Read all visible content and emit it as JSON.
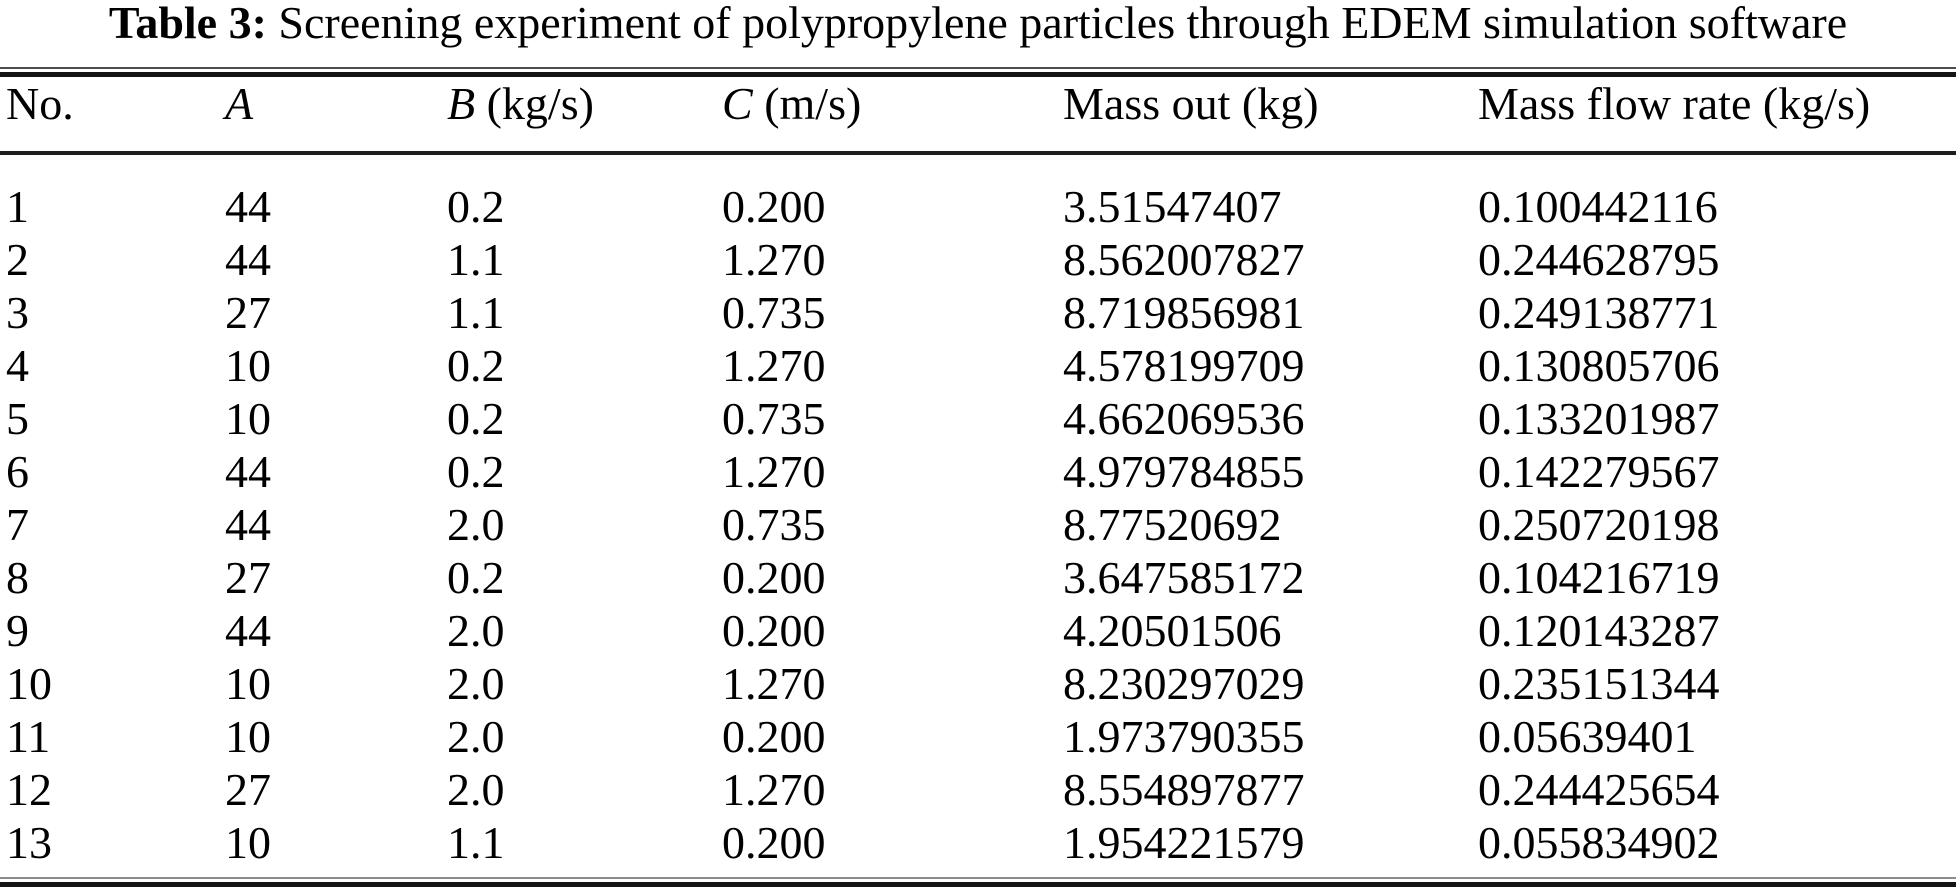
{
  "caption": {
    "label": "Table 3:",
    "text": " Screening experiment of polypropylene particles through EDEM simulation software"
  },
  "table": {
    "headers": [
      {
        "label": "No."
      },
      {
        "var": "A",
        "unit": ""
      },
      {
        "var": "B",
        "unit": " (kg/s)"
      },
      {
        "var": "C",
        "unit": " (m/s)"
      },
      {
        "label": "Mass out (kg)"
      },
      {
        "label": "Mass flow rate (kg/s)"
      }
    ],
    "rows": [
      [
        "1",
        "44",
        "0.2",
        "0.200",
        "3.51547407",
        "0.100442116"
      ],
      [
        "2",
        "44",
        "1.1",
        "1.270",
        "8.562007827",
        "0.244628795"
      ],
      [
        "3",
        "27",
        "1.1",
        "0.735",
        "8.719856981",
        "0.249138771"
      ],
      [
        "4",
        "10",
        "0.2",
        "1.270",
        "4.578199709",
        "0.130805706"
      ],
      [
        "5",
        "10",
        "0.2",
        "0.735",
        "4.662069536",
        "0.133201987"
      ],
      [
        "6",
        "44",
        "0.2",
        "1.270",
        "4.979784855",
        "0.142279567"
      ],
      [
        "7",
        "44",
        "2.0",
        "0.735",
        "8.77520692",
        "0.250720198"
      ],
      [
        "8",
        "27",
        "0.2",
        "0.200",
        "3.647585172",
        "0.104216719"
      ],
      [
        "9",
        "44",
        "2.0",
        "0.200",
        "4.20501506",
        "0.120143287"
      ],
      [
        "10",
        "10",
        "2.0",
        "1.270",
        "8.230297029",
        "0.235151344"
      ],
      [
        "11",
        "10",
        "2.0",
        "0.200",
        "1.973790355",
        "0.05639401"
      ],
      [
        "12",
        "27",
        "2.0",
        "1.270",
        "8.554897877",
        "0.244425654"
      ],
      [
        "13",
        "10",
        "1.1",
        "0.200",
        "1.954221579",
        "0.055834902"
      ]
    ]
  }
}
